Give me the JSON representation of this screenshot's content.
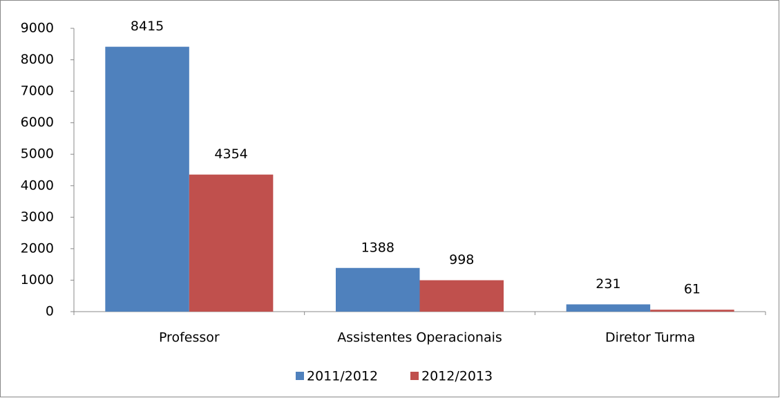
{
  "chart_data": {
    "type": "bar",
    "categories": [
      "Professor",
      "Assistentes Operacionais",
      "Diretor Turma"
    ],
    "series": [
      {
        "name": "2011/2012",
        "color": "#4f81bd",
        "values": [
          8415,
          1388,
          231
        ]
      },
      {
        "name": "2012/2013",
        "color": "#c0504d",
        "values": [
          4354,
          998,
          61
        ]
      }
    ],
    "ylim": [
      0,
      9000
    ],
    "yticks": [
      0,
      1000,
      2000,
      3000,
      4000,
      5000,
      6000,
      7000,
      8000,
      9000
    ],
    "grid": false,
    "legend": "bottom"
  }
}
